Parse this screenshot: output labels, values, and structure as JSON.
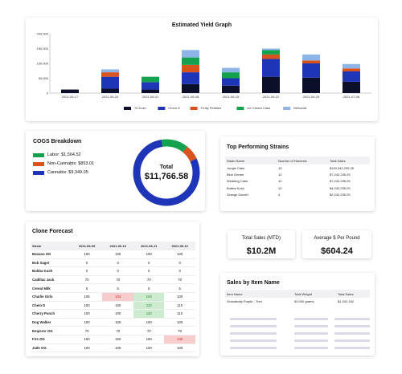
{
  "yield": {
    "title": "Estimated Yield Graph",
    "chart_data": {
      "type": "bar",
      "stacked": true,
      "title": "Estimated Yield Graph",
      "categories": [
        "2021-05-17",
        "2021-05-24",
        "2021-06-01",
        "2021-06-08",
        "2021-06-15",
        "2021-06-22",
        "2021-06-29",
        "2021-07-06"
      ],
      "ylim": [
        0,
        200000
      ],
      "yticks": [
        "200,000",
        "150,000",
        "100,000",
        "50,000",
        "0"
      ],
      "ytick_values": [
        200000,
        150000,
        100000,
        50000,
        0
      ],
      "legend_position": "bottom",
      "series": [
        {
          "name": "76 Kush",
          "color": "#0b0f29",
          "values": [
            12000,
            15000,
            12000,
            30000,
            25000,
            55000,
            52000,
            38000
          ]
        },
        {
          "name": "Chem D",
          "color": "#1f35b8",
          "values": [
            0,
            40000,
            25000,
            40000,
            25000,
            60000,
            48000,
            35000
          ]
        },
        {
          "name": "Fruity Pebbles",
          "color": "#d9531e",
          "values": [
            0,
            15000,
            0,
            25000,
            0,
            15000,
            10000,
            10000
          ]
        },
        {
          "name": "Ice Cream Cake",
          "color": "#15a24e",
          "values": [
            0,
            0,
            18000,
            25000,
            20000,
            15000,
            0,
            0
          ]
        },
        {
          "name": "Melonotti",
          "color": "#8db5e8",
          "values": [
            0,
            10000,
            0,
            25000,
            15000,
            5000,
            20000,
            15000
          ]
        }
      ]
    }
  },
  "cogs": {
    "title": "COGS Breakdown",
    "legend": [
      {
        "label": "Labor: $1,564.52",
        "color": "#15a24e",
        "value": 1564.52
      },
      {
        "label": "Non-Cannabis: $853.01",
        "color": "#d9531e",
        "value": 853.01
      },
      {
        "label": "Cannabis: $9,349.05",
        "color": "#1f35b8",
        "value": 9349.05
      }
    ],
    "donut_label": "Total",
    "donut_value": "$11,766.58"
  },
  "strains": {
    "title": "Top Performing Strains",
    "headers": [
      "Strain Name",
      "Number of Harvests",
      "Total Sales"
    ],
    "rows": [
      [
        "Jungle Cake",
        "15",
        "$100,342,235.25"
      ],
      [
        "Blue Dream",
        "12",
        "$7,242,235.25"
      ],
      [
        "Wedding Cake",
        "12",
        "$7,242,235.25"
      ],
      [
        "Bubba Kush",
        "10",
        "$4,242,235.25"
      ],
      [
        "Orange DanuH",
        "4",
        "$2,242,235.25"
      ]
    ]
  },
  "clone": {
    "title": "Clone Forecast",
    "headers": [
      "Strain",
      "2021-06-09",
      "2021-06-10",
      "2021-06-11",
      "2021-06-12"
    ],
    "rows": [
      [
        "Banana OG",
        "100",
        "100",
        "100",
        "100"
      ],
      [
        "Bob Saget",
        "0",
        "0",
        "0",
        "0"
      ],
      [
        "Bubba Kush",
        "0",
        "0",
        "0",
        "0"
      ],
      [
        "Cadillac Jack",
        "70",
        "70",
        "70",
        "70"
      ],
      [
        "Cereal Milk",
        "5",
        "5",
        "5",
        "5"
      ],
      [
        "Charlie Girls",
        "105",
        "104",
        "104",
        "100"
      ],
      [
        "Chem D",
        "100",
        "100",
        "110",
        "110"
      ],
      [
        "Cherry Punch",
        "100",
        "100",
        "110",
        "110"
      ],
      [
        "Dog Walker",
        "100",
        "100",
        "100",
        "100"
      ],
      [
        "Emperor OG",
        "70",
        "70",
        "70",
        "70"
      ],
      [
        "Fire OG",
        "150",
        "150",
        "150",
        "140"
      ],
      [
        "Jade OG",
        "100",
        "100",
        "100",
        "100"
      ]
    ]
  },
  "kpi": {
    "total_sales_label": "Total Sales (MTD)",
    "total_sales_value": "$10.2M",
    "avg_price_label": "Average $ Per Pound",
    "avg_price_value": "$604.24"
  },
  "sales": {
    "title": "Sales by Item Name",
    "headers": [
      "Item Name",
      "Total Weight",
      "Total Sales"
    ],
    "row": [
      "Grandaddy Purple - Trim",
      "50,000 grams",
      "$1,342,342"
    ]
  }
}
